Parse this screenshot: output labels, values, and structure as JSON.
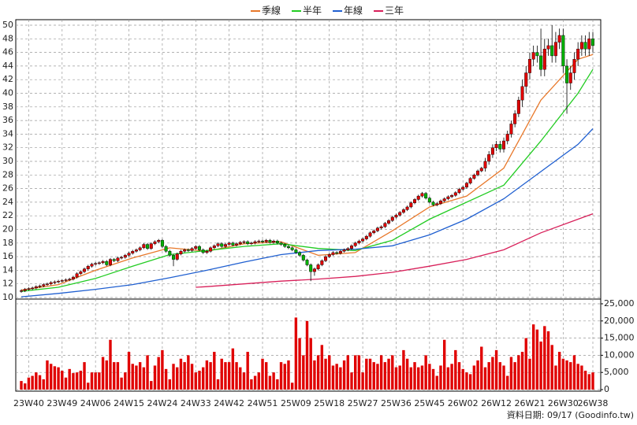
{
  "chart_data": {
    "type": "candlestick",
    "up_color": "#e00000",
    "down_color": "#00b000",
    "grid": true,
    "legend_position": "top",
    "source": "資料日期: 09/17 (Goodinfo.tw)",
    "categories": [
      null,
      null,
      "23W40",
      null,
      null,
      null,
      null,
      null,
      null,
      null,
      null,
      "23W49",
      null,
      null,
      null,
      null,
      null,
      null,
      null,
      null,
      "24W06",
      null,
      null,
      null,
      null,
      null,
      null,
      null,
      null,
      "24W15",
      null,
      null,
      null,
      null,
      null,
      null,
      null,
      null,
      "24W24",
      null,
      null,
      null,
      null,
      null,
      null,
      null,
      null,
      "24W33",
      null,
      null,
      null,
      null,
      null,
      null,
      null,
      null,
      "24W42",
      null,
      null,
      null,
      null,
      null,
      null,
      null,
      null,
      "24W51",
      null,
      null,
      null,
      null,
      null,
      null,
      null,
      null,
      "25W09",
      null,
      null,
      null,
      null,
      null,
      null,
      null,
      null,
      "25W18",
      null,
      null,
      null,
      null,
      null,
      null,
      null,
      null,
      "25W27",
      null,
      null,
      null,
      null,
      null,
      null,
      null,
      null,
      "25W36",
      null,
      null,
      null,
      null,
      null,
      null,
      null,
      null,
      "25W45",
      null,
      null,
      null,
      null,
      null,
      null,
      null,
      null,
      "26W02",
      null,
      null,
      null,
      null,
      null,
      null,
      null,
      null,
      "26W12",
      null,
      null,
      null,
      null,
      null,
      null,
      null,
      null,
      "26W21",
      null,
      null,
      null,
      null,
      null,
      null,
      null,
      null,
      "26W30",
      null,
      null,
      null,
      null,
      null,
      null,
      null,
      "26W38"
    ],
    "open": [
      10.9,
      11.0,
      11.2,
      11.3,
      11.4,
      11.6,
      11.7,
      11.9,
      12.0,
      12.2,
      12.3,
      12.4,
      12.5,
      12.6,
      12.7,
      13.0,
      13.5,
      13.8,
      14.2,
      14.6,
      14.9,
      15.0,
      15.1,
      15.3,
      14.8,
      15.6,
      15.4,
      15.8,
      15.9,
      16.2,
      16.5,
      16.8,
      17.0,
      17.3,
      17.8,
      17.2,
      17.9,
      18.2,
      18.4,
      17.5,
      16.8,
      16.2,
      15.6,
      16.4,
      16.8,
      17.0,
      16.9,
      17.2,
      17.5,
      17.0,
      16.6,
      16.8,
      17.3,
      17.6,
      17.9,
      17.5,
      17.8,
      18.0,
      17.7,
      17.9,
      18.1,
      18.2,
      17.9,
      18.0,
      18.2,
      18.3,
      18.2,
      18.4,
      18.1,
      18.3,
      18.0,
      17.8,
      17.5,
      17.3,
      17.0,
      16.6,
      16.2,
      15.5,
      14.8,
      13.8,
      14.2,
      14.8,
      15.4,
      16.0,
      16.3,
      16.6,
      16.5,
      16.8,
      17.0,
      17.2,
      17.6,
      18.0,
      18.3,
      18.6,
      19.0,
      19.5,
      19.8,
      20.2,
      20.4,
      20.9,
      21.3,
      21.8,
      22.1,
      22.5,
      22.9,
      23.3,
      23.9,
      24.4,
      24.9,
      25.3,
      24.6,
      24.0,
      23.6,
      23.8,
      24.2,
      24.5,
      24.8,
      25.0,
      25.4,
      25.9,
      26.2,
      26.8,
      27.5,
      28.0,
      28.6,
      29.0,
      30.0,
      31.0,
      32.0,
      32.5,
      31.8,
      33.0,
      34.0,
      35.5,
      37.0,
      39.0,
      41.0,
      43.0,
      45.0,
      46.0,
      45.5,
      43.5,
      46.5,
      47.0,
      45.5,
      47.5,
      48.5,
      44.0,
      41.5,
      43.0,
      45.0,
      46.5,
      47.5,
      46.5,
      48.0
    ],
    "high": [
      11.2,
      11.4,
      11.5,
      11.6,
      11.8,
      11.9,
      12.1,
      12.2,
      12.4,
      12.5,
      12.6,
      12.7,
      12.8,
      12.9,
      13.2,
      13.7,
      14.0,
      14.4,
      14.8,
      15.1,
      15.2,
      15.3,
      15.5,
      15.5,
      15.8,
      15.8,
      16.0,
      16.1,
      16.4,
      16.7,
      17.0,
      17.2,
      17.5,
      18.0,
      18.0,
      18.1,
      18.4,
      18.6,
      18.6,
      17.7,
      17.0,
      16.4,
      16.6,
      17.0,
      17.2,
      17.2,
      17.4,
      17.7,
      17.7,
      17.2,
      17.0,
      17.5,
      17.8,
      18.1,
      18.1,
      18.0,
      18.2,
      18.2,
      18.1,
      18.3,
      18.4,
      18.4,
      18.2,
      18.4,
      18.5,
      18.5,
      18.6,
      18.6,
      18.5,
      18.5,
      18.2,
      18.0,
      17.7,
      17.5,
      17.2,
      16.8,
      16.4,
      15.7,
      15.0,
      14.4,
      15.0,
      15.6,
      16.2,
      16.5,
      16.8,
      16.8,
      17.0,
      17.2,
      17.4,
      17.8,
      18.2,
      18.5,
      18.8,
      19.2,
      19.7,
      20.0,
      20.4,
      20.6,
      21.1,
      21.5,
      22.0,
      22.3,
      22.7,
      23.1,
      23.5,
      24.1,
      24.6,
      25.1,
      25.5,
      25.5,
      24.8,
      24.2,
      24.0,
      24.4,
      24.7,
      25.0,
      25.2,
      25.6,
      26.1,
      26.4,
      27.0,
      27.7,
      28.2,
      28.8,
      29.2,
      30.5,
      31.5,
      32.5,
      33.0,
      33.0,
      33.5,
      34.5,
      36.0,
      37.5,
      39.5,
      42.0,
      44.0,
      46.0,
      47.0,
      47.0,
      49.5,
      48.0,
      48.0,
      50.0,
      49.0,
      49.5,
      49.5,
      45.0,
      44.0,
      46.0,
      47.5,
      48.5,
      48.5,
      49.0,
      49.0
    ],
    "low": [
      10.7,
      10.8,
      11.0,
      11.1,
      11.2,
      11.4,
      11.5,
      11.7,
      11.8,
      12.0,
      12.1,
      12.2,
      12.3,
      12.4,
      12.5,
      12.8,
      13.3,
      13.6,
      14.0,
      14.4,
      14.7,
      14.8,
      14.9,
      14.6,
      14.6,
      15.2,
      15.2,
      15.6,
      15.7,
      16.0,
      16.3,
      16.6,
      16.8,
      17.1,
      17.0,
      17.0,
      17.7,
      18.0,
      17.3,
      16.6,
      16.0,
      14.6,
      15.4,
      16.2,
      16.6,
      16.7,
      16.7,
      17.0,
      16.8,
      16.4,
      16.4,
      16.6,
      17.1,
      17.4,
      17.3,
      17.3,
      17.6,
      17.5,
      17.5,
      17.7,
      17.9,
      17.7,
      17.7,
      17.8,
      18.0,
      18.0,
      18.0,
      17.9,
      17.9,
      17.8,
      17.6,
      17.3,
      17.1,
      16.8,
      16.4,
      16.0,
      15.3,
      14.6,
      12.4,
      13.2,
      14.0,
      14.6,
      15.2,
      15.8,
      16.1,
      16.3,
      16.3,
      16.6,
      16.8,
      17.0,
      17.4,
      17.8,
      18.1,
      18.4,
      18.8,
      19.3,
      19.6,
      20.0,
      20.2,
      20.7,
      21.1,
      21.6,
      21.9,
      22.3,
      22.7,
      23.1,
      23.7,
      24.2,
      24.7,
      24.4,
      23.8,
      23.4,
      23.4,
      23.6,
      24.0,
      24.3,
      24.6,
      24.8,
      25.2,
      25.7,
      26.0,
      26.6,
      27.3,
      27.8,
      28.4,
      28.5,
      29.5,
      30.5,
      31.5,
      31.3,
      31.3,
      32.5,
      33.5,
      35.0,
      36.5,
      38.0,
      40.0,
      42.0,
      44.0,
      44.5,
      42.5,
      42.5,
      45.5,
      44.5,
      44.5,
      46.5,
      43.0,
      37.0,
      40.5,
      42.0,
      44.0,
      45.5,
      45.5,
      45.5,
      46.0
    ],
    "close": [
      11.0,
      11.2,
      11.3,
      11.4,
      11.6,
      11.7,
      11.9,
      12.0,
      12.2,
      12.3,
      12.4,
      12.5,
      12.6,
      12.7,
      13.0,
      13.5,
      13.8,
      14.2,
      14.6,
      14.9,
      15.0,
      15.1,
      15.3,
      14.8,
      15.6,
      15.4,
      15.8,
      15.9,
      16.2,
      16.5,
      16.8,
      17.0,
      17.3,
      17.8,
      17.2,
      17.9,
      18.2,
      18.4,
      17.5,
      16.8,
      16.2,
      15.6,
      16.4,
      16.8,
      17.0,
      16.9,
      17.2,
      17.5,
      17.0,
      16.6,
      16.8,
      17.3,
      17.6,
      17.9,
      17.5,
      17.8,
      18.0,
      17.7,
      17.9,
      18.1,
      18.2,
      17.9,
      18.0,
      18.2,
      18.3,
      18.2,
      18.4,
      18.1,
      18.3,
      18.0,
      17.8,
      17.5,
      17.3,
      17.0,
      16.6,
      16.2,
      15.5,
      14.8,
      13.8,
      14.2,
      14.8,
      15.4,
      16.0,
      16.3,
      16.6,
      16.5,
      16.8,
      17.0,
      17.2,
      17.6,
      18.0,
      18.3,
      18.6,
      19.0,
      19.5,
      19.8,
      20.2,
      20.4,
      20.9,
      21.3,
      21.8,
      22.1,
      22.5,
      22.9,
      23.3,
      23.9,
      24.4,
      24.9,
      25.3,
      24.6,
      24.0,
      23.6,
      23.8,
      24.2,
      24.5,
      24.8,
      25.0,
      25.4,
      25.9,
      26.2,
      26.8,
      27.5,
      28.0,
      28.6,
      29.0,
      30.0,
      31.0,
      32.0,
      32.5,
      31.8,
      33.0,
      34.0,
      35.5,
      37.0,
      39.0,
      41.0,
      43.0,
      45.0,
      46.0,
      45.5,
      43.5,
      46.5,
      47.0,
      45.5,
      47.5,
      48.5,
      44.0,
      41.5,
      43.0,
      45.0,
      46.5,
      47.5,
      46.5,
      48.0,
      47.0
    ],
    "ylim": [
      10,
      50
    ],
    "yticks": [
      10,
      12,
      14,
      16,
      18,
      20,
      22,
      24,
      26,
      28,
      30,
      32,
      34,
      36,
      38,
      40,
      42,
      44,
      46,
      48,
      50
    ],
    "series": [
      {
        "name": "季線",
        "color": "#e8782a",
        "x": [
          0,
          10,
          20,
          30,
          40,
          50,
          60,
          70,
          80,
          90,
          100,
          110,
          120,
          130,
          140,
          150,
          154
        ],
        "values": [
          11.1,
          11.9,
          14.0,
          15.8,
          17.3,
          16.8,
          17.9,
          18.2,
          16.2,
          16.6,
          19.8,
          23.3,
          24.9,
          29.0,
          39.0,
          45.0,
          45.7
        ]
      },
      {
        "name": "半年",
        "color": "#22cc22",
        "x": [
          0,
          10,
          20,
          30,
          40,
          50,
          60,
          70,
          80,
          90,
          100,
          110,
          120,
          130,
          140,
          150,
          154
        ],
        "values": [
          10.9,
          11.5,
          12.8,
          14.6,
          16.3,
          16.9,
          17.5,
          17.9,
          17.2,
          16.9,
          18.4,
          21.5,
          24.0,
          26.5,
          33.0,
          40.0,
          43.5
        ]
      },
      {
        "name": "年線",
        "color": "#1f5fd0",
        "x": [
          0,
          10,
          20,
          30,
          40,
          50,
          60,
          70,
          80,
          90,
          100,
          110,
          120,
          130,
          140,
          150,
          154
        ],
        "values": [
          10.1,
          10.6,
          11.2,
          11.9,
          12.9,
          14.0,
          15.2,
          16.3,
          16.9,
          17.1,
          17.6,
          19.2,
          21.5,
          24.5,
          28.5,
          32.5,
          34.8
        ]
      },
      {
        "name": "三年",
        "color": "#d8205a",
        "x": [
          47,
          50,
          60,
          70,
          80,
          90,
          100,
          110,
          120,
          130,
          140,
          150,
          154
        ],
        "values": [
          11.5,
          11.6,
          12.0,
          12.4,
          12.7,
          13.1,
          13.7,
          14.6,
          15.6,
          17.0,
          19.5,
          21.5,
          22.3
        ]
      }
    ],
    "volume": {
      "color": "#e00000",
      "ylim": [
        0,
        25000
      ],
      "yticks": [
        0,
        {
          "value": 5000,
          "label": "5,000"
        },
        {
          "value": 10000,
          "label": "10,000"
        },
        {
          "value": 15000,
          "label": "15,000"
        },
        {
          "value": 20000,
          "label": "20,000"
        },
        {
          "value": 25000,
          "label": "25,000"
        }
      ],
      "values": [
        2500,
        1800,
        3500,
        4000,
        5000,
        4200,
        3000,
        8500,
        7500,
        6800,
        6500,
        5500,
        3500,
        6000,
        4800,
        5000,
        5500,
        8000,
        2000,
        5000,
        5000,
        5000,
        9500,
        8500,
        14500,
        8000,
        8000,
        3500,
        5000,
        11000,
        7500,
        7000,
        8000,
        6500,
        10000,
        2500,
        7000,
        9500,
        11500,
        6000,
        3000,
        7500,
        6500,
        9000,
        8000,
        10000,
        7500,
        5000,
        5500,
        6500,
        8500,
        8000,
        11000,
        3000,
        9000,
        8000,
        8000,
        12000,
        8000,
        6500,
        5000,
        11000,
        3000,
        4000,
        5000,
        9000,
        8000,
        4000,
        5000,
        3000,
        8000,
        7500,
        8500,
        2000,
        21000,
        15000,
        10000,
        20000,
        15000,
        8500,
        10000,
        13000,
        9000,
        10000,
        7000,
        7500,
        6500,
        8500,
        10000,
        5000,
        10000,
        10000,
        5000,
        9000,
        9000,
        8000,
        7500,
        10000,
        8000,
        9000,
        10000,
        6500,
        7000,
        11500,
        9000,
        6500,
        8000,
        6500,
        7000,
        10000,
        7500,
        6000,
        4000,
        7000,
        14500,
        6500,
        7500,
        11500,
        8000,
        6000,
        5000,
        4500,
        7000,
        8500,
        12500,
        6500,
        8000,
        9500,
        11500,
        8000,
        7000,
        4000,
        9500,
        8000,
        10000,
        11000,
        15000,
        9000,
        19000,
        17500,
        14000,
        18500,
        17000,
        13000,
        7000,
        11000,
        9000,
        8500,
        8000,
        10000,
        7500,
        7000,
        5500,
        4500,
        5000
      ]
    }
  }
}
